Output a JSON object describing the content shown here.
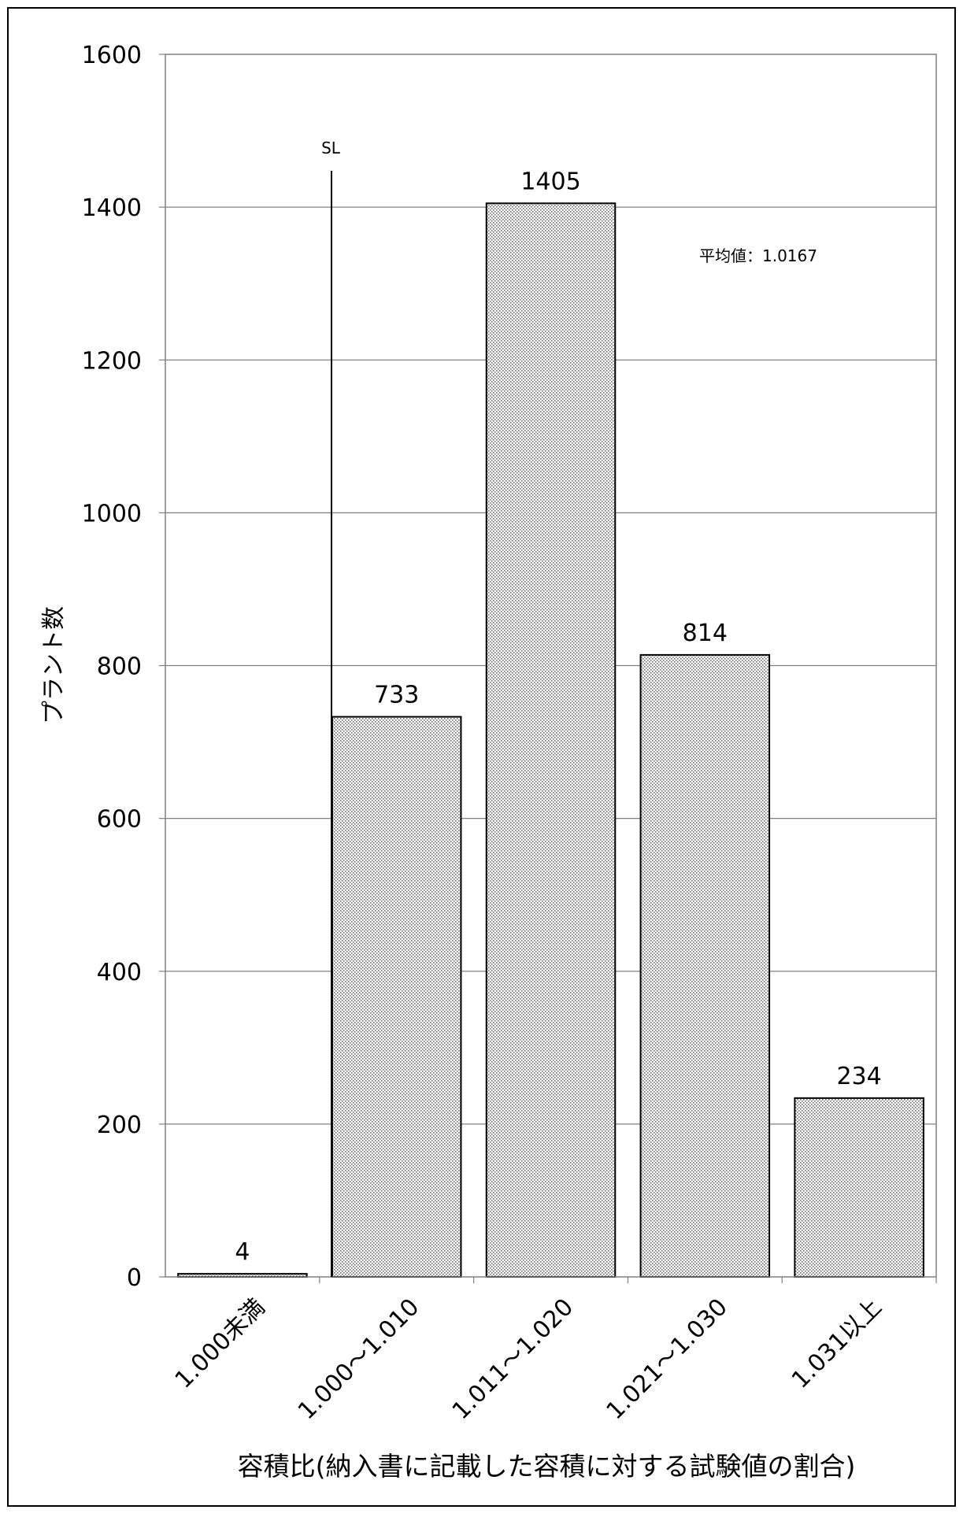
{
  "chart_data": {
    "type": "bar",
    "title": "",
    "xlabel": "容積比(納入書に記載した容積に対する試験値の割合)",
    "ylabel": "プラント数",
    "categories": [
      "1.000未満",
      "1.000～1.010",
      "1.011～1.020",
      "1.021～1.030",
      "1.031以上"
    ],
    "values": [
      4,
      733,
      1405,
      814,
      234
    ],
    "data_labels": [
      "4",
      "733",
      "1405",
      "814",
      "234"
    ],
    "ylim": [
      0,
      1600
    ],
    "yticks": [
      0,
      200,
      400,
      600,
      800,
      1000,
      1200,
      1400,
      1600
    ],
    "ytick_labels": [
      "0",
      "200",
      "400",
      "600",
      "800",
      "1000",
      "1200",
      "1400",
      "1600"
    ],
    "grid": true,
    "bar_fill": "dotted-gray",
    "annotations": {
      "sl_label": "SL",
      "mean_label": "平均値：1.0167"
    }
  }
}
